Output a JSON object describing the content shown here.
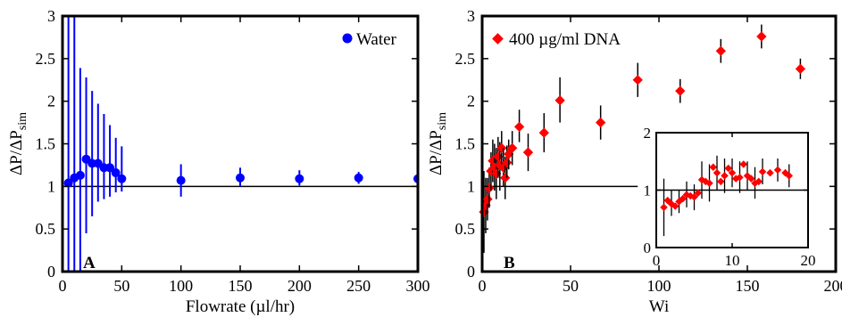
{
  "chart_data": [
    {
      "type": "scatter",
      "panel_label": "A",
      "xlabel": "Flowrate (µl/hr)",
      "ylabel": "ΔP/ΔP",
      "ylabel_subscript": "sim",
      "xlim": [
        0,
        300
      ],
      "ylim": [
        0,
        3
      ],
      "xticks": [
        0,
        50,
        100,
        150,
        200,
        250,
        300
      ],
      "yticks": [
        0,
        0.5,
        1,
        1.5,
        2,
        2.5,
        3
      ],
      "ytick_labels": [
        "0",
        "0.5",
        "1",
        "1.5",
        "2",
        "2.5",
        "3"
      ],
      "reference_line_y": 1,
      "legend_position": "top-right",
      "series": [
        {
          "name": "Water",
          "color": "#0000ff",
          "marker": "circle",
          "x": [
            5,
            10,
            15,
            20,
            25,
            30,
            35,
            40,
            45,
            50,
            100,
            150,
            200,
            250,
            300
          ],
          "y": [
            1.04,
            1.1,
            1.13,
            1.32,
            1.27,
            1.27,
            1.22,
            1.22,
            1.16,
            1.09,
            1.07,
            1.1,
            1.09,
            1.1,
            1.09
          ],
          "err_lo": [
            0.0,
            0.0,
            0.0,
            0.45,
            0.65,
            0.82,
            0.85,
            0.88,
            0.93,
            0.94,
            0.88,
            1.0,
            1.01,
            1.03,
            1.06
          ],
          "err_hi": [
            3.0,
            3.0,
            2.39,
            2.28,
            2.12,
            1.97,
            1.85,
            1.72,
            1.57,
            1.47,
            1.26,
            1.22,
            1.19,
            1.17,
            1.13
          ]
        }
      ]
    },
    {
      "type": "scatter",
      "panel_label": "B",
      "xlabel": "Wi",
      "ylabel": "ΔP/ΔP",
      "ylabel_subscript": "sim",
      "xlim": [
        0,
        200
      ],
      "ylim": [
        0,
        3
      ],
      "xticks": [
        0,
        50,
        100,
        150,
        200
      ],
      "yticks": [
        0,
        0.5,
        1,
        1.5,
        2,
        2.5,
        3
      ],
      "ytick_labels": [
        "0",
        "0.5",
        "1",
        "1.5",
        "2",
        "2.5",
        "3"
      ],
      "reference_line_y": 1,
      "legend_position": "top-left",
      "series": [
        {
          "name": "400 µg/ml DNA",
          "color": "#ff0000",
          "marker": "diamond",
          "x": [
            1,
            2,
            3,
            4,
            5,
            6,
            7,
            8,
            9,
            10,
            11,
            12,
            13,
            14,
            15,
            17,
            21,
            26,
            35,
            44,
            67,
            88,
            112,
            135,
            158,
            180
          ],
          "y": [
            0.7,
            0.78,
            0.85,
            0.98,
            1.18,
            1.3,
            1.22,
            1.15,
            1.35,
            1.25,
            1.45,
            1.22,
            1.1,
            1.28,
            1.38,
            1.45,
            1.7,
            1.4,
            1.63,
            2.01,
            1.75,
            2.25,
            2.12,
            2.59,
            2.76,
            2.38
          ],
          "err_lo": [
            0.22,
            0.45,
            0.6,
            0.75,
            0.95,
            1.05,
            0.95,
            0.85,
            1.1,
            0.95,
            1.25,
            1.0,
            0.85,
            1.1,
            1.2,
            1.25,
            1.52,
            1.18,
            1.4,
            1.75,
            1.55,
            2.05,
            1.98,
            2.45,
            2.62,
            2.26
          ],
          "err_hi": [
            1.18,
            1.1,
            1.1,
            1.22,
            1.4,
            1.55,
            1.5,
            1.45,
            1.58,
            1.52,
            1.65,
            1.45,
            1.35,
            1.48,
            1.55,
            1.65,
            1.9,
            1.62,
            1.86,
            2.28,
            1.95,
            2.45,
            2.26,
            2.73,
            2.9,
            2.5
          ]
        }
      ],
      "inset": {
        "xlim": [
          0,
          20
        ],
        "ylim": [
          0,
          2
        ],
        "xticks": [
          0,
          10,
          20
        ],
        "yticks": [
          0,
          1,
          2
        ],
        "reference_line_y": 1,
        "x": [
          1,
          1.5,
          2,
          2.5,
          3,
          3.5,
          4,
          4.5,
          5,
          5.5,
          6,
          6.5,
          7,
          7.5,
          8,
          8.5,
          9,
          9.5,
          10,
          10.5,
          11,
          11.5,
          12,
          12.5,
          13,
          13.5,
          14,
          15,
          16,
          17,
          17.5
        ],
        "y": [
          0.7,
          0.82,
          0.76,
          0.72,
          0.8,
          0.85,
          0.92,
          0.9,
          0.88,
          0.95,
          1.18,
          1.15,
          1.12,
          1.4,
          1.3,
          1.15,
          1.25,
          1.38,
          1.3,
          1.2,
          1.22,
          1.45,
          1.25,
          1.2,
          1.12,
          1.15,
          1.32,
          1.3,
          1.35,
          1.3,
          1.25
        ],
        "err_lo": [
          0.2,
          0.5,
          0.55,
          0.55,
          0.6,
          0.65,
          0.7,
          0.7,
          0.65,
          0.75,
          0.85,
          0.85,
          0.8,
          1.1,
          1.0,
          0.85,
          0.95,
          1.1,
          1.05,
          0.95,
          0.95,
          1.2,
          1.0,
          0.95,
          0.85,
          0.9,
          1.1,
          1.1,
          1.15,
          1.1,
          1.05
        ],
        "err_hi": [
          1.2,
          1.1,
          1.0,
          0.9,
          1.0,
          1.05,
          1.15,
          1.1,
          1.1,
          1.15,
          1.5,
          1.45,
          1.45,
          1.7,
          1.6,
          1.45,
          1.55,
          1.65,
          1.55,
          1.45,
          1.5,
          1.7,
          1.5,
          1.45,
          1.4,
          1.4,
          1.55,
          1.5,
          1.55,
          1.5,
          1.45
        ]
      }
    }
  ]
}
